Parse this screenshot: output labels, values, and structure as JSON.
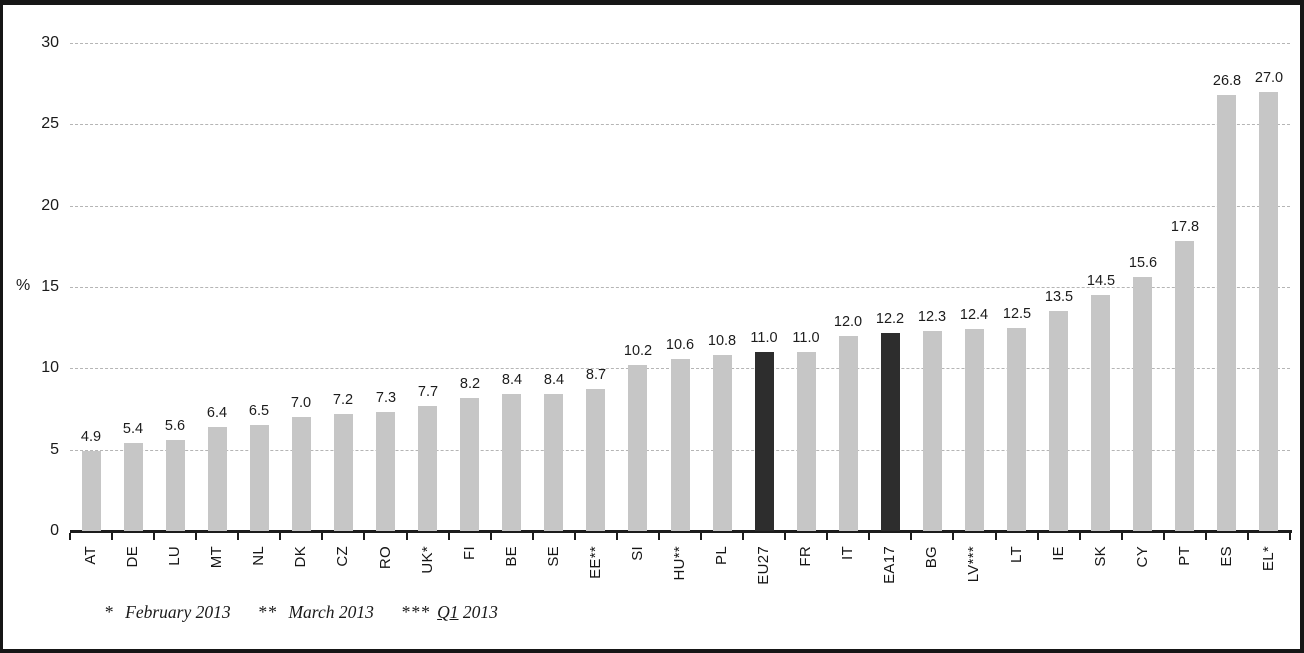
{
  "chart_data": {
    "type": "bar",
    "title": "",
    "xlabel": "",
    "ylabel": "%",
    "ylim": [
      0,
      30
    ],
    "yticks": [
      0,
      5,
      10,
      15,
      20,
      25,
      30
    ],
    "grid": "horizontal-dashed",
    "legend": "none",
    "categories": [
      "AT",
      "DE",
      "LU",
      "MT",
      "NL",
      "DK",
      "CZ",
      "RO",
      "UK*",
      "FI",
      "BE",
      "SE",
      "EE**",
      "SI",
      "HU**",
      "PL",
      "EU27",
      "FR",
      "IT",
      "EA17",
      "BG",
      "LV***",
      "LT",
      "IE",
      "SK",
      "CY",
      "PT",
      "ES",
      "EL*"
    ],
    "values": [
      4.9,
      5.4,
      5.6,
      6.4,
      6.5,
      7.0,
      7.2,
      7.3,
      7.7,
      8.2,
      8.4,
      8.4,
      8.7,
      10.2,
      10.6,
      10.8,
      11.0,
      11.0,
      12.0,
      12.2,
      12.3,
      12.4,
      12.5,
      13.5,
      14.5,
      15.6,
      17.8,
      26.8,
      27.0
    ],
    "highlighted_categories": [
      "EU27",
      "EA17"
    ],
    "bar_color": "#c6c6c6",
    "highlight_color": "#2d2d2d",
    "value_labels_shown": true
  },
  "footnotes": [
    {
      "marker": "*",
      "text": "February 2013"
    },
    {
      "marker": "**",
      "text": "March 2013"
    },
    {
      "marker": "***",
      "text_underlined": "Q1",
      "text": "2013"
    }
  ],
  "colors": {
    "background": "#ffffff",
    "frame_border": "#161616",
    "gridline": "#b5b5b5",
    "axis": "#1c1c1c",
    "text": "#1a1a1a"
  }
}
